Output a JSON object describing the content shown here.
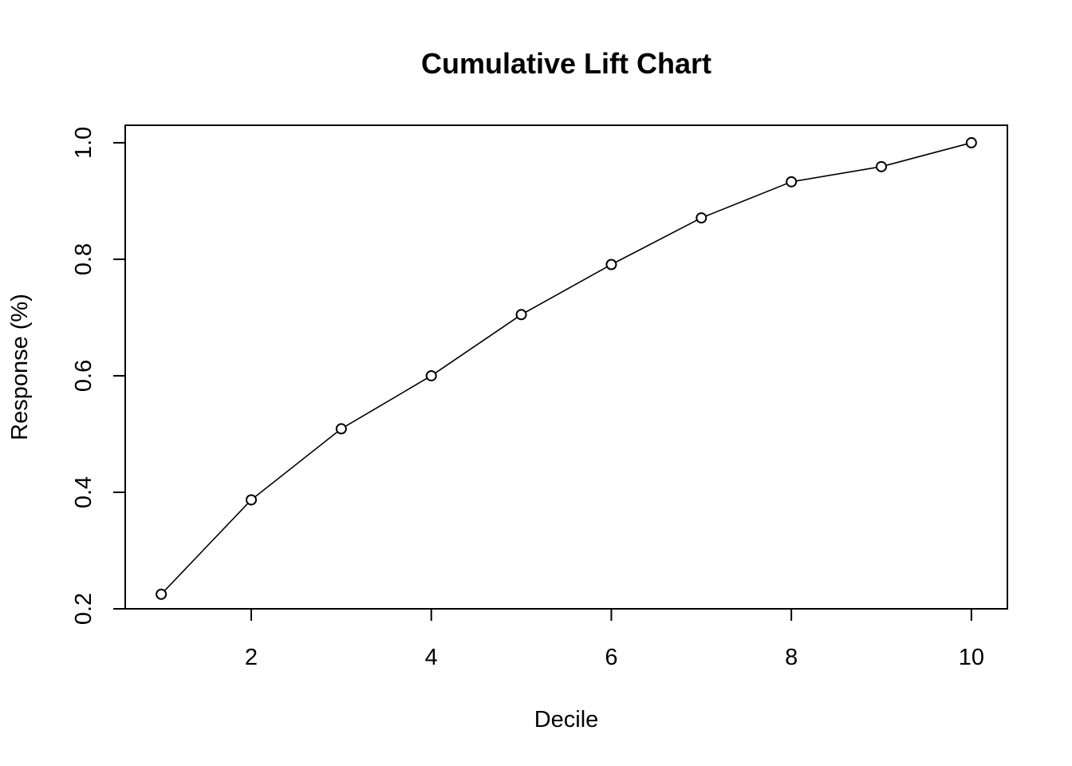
{
  "chart_data": {
    "type": "line",
    "title": "Cumulative Lift Chart",
    "xlabel": "Decile",
    "ylabel": "Response (%)",
    "xlim": [
      0.6,
      10.4
    ],
    "ylim": [
      0.2,
      1.03
    ],
    "x_ticks": [
      2,
      4,
      6,
      8,
      10
    ],
    "y_ticks": [
      0.2,
      0.4,
      0.6,
      0.8,
      1.0
    ],
    "x_tick_labels": [
      "2",
      "4",
      "6",
      "8",
      "10"
    ],
    "y_tick_labels": [
      "0.2",
      "0.4",
      "0.6",
      "0.8",
      "1.0"
    ],
    "grid": false,
    "marker": "open-circle",
    "series": [
      {
        "x": [
          1,
          2,
          3,
          4,
          5,
          6,
          7,
          8,
          9,
          10
        ],
        "values": [
          0.225,
          0.387,
          0.509,
          0.6,
          0.705,
          0.791,
          0.871,
          0.933,
          0.959,
          1.0
        ]
      }
    ]
  }
}
